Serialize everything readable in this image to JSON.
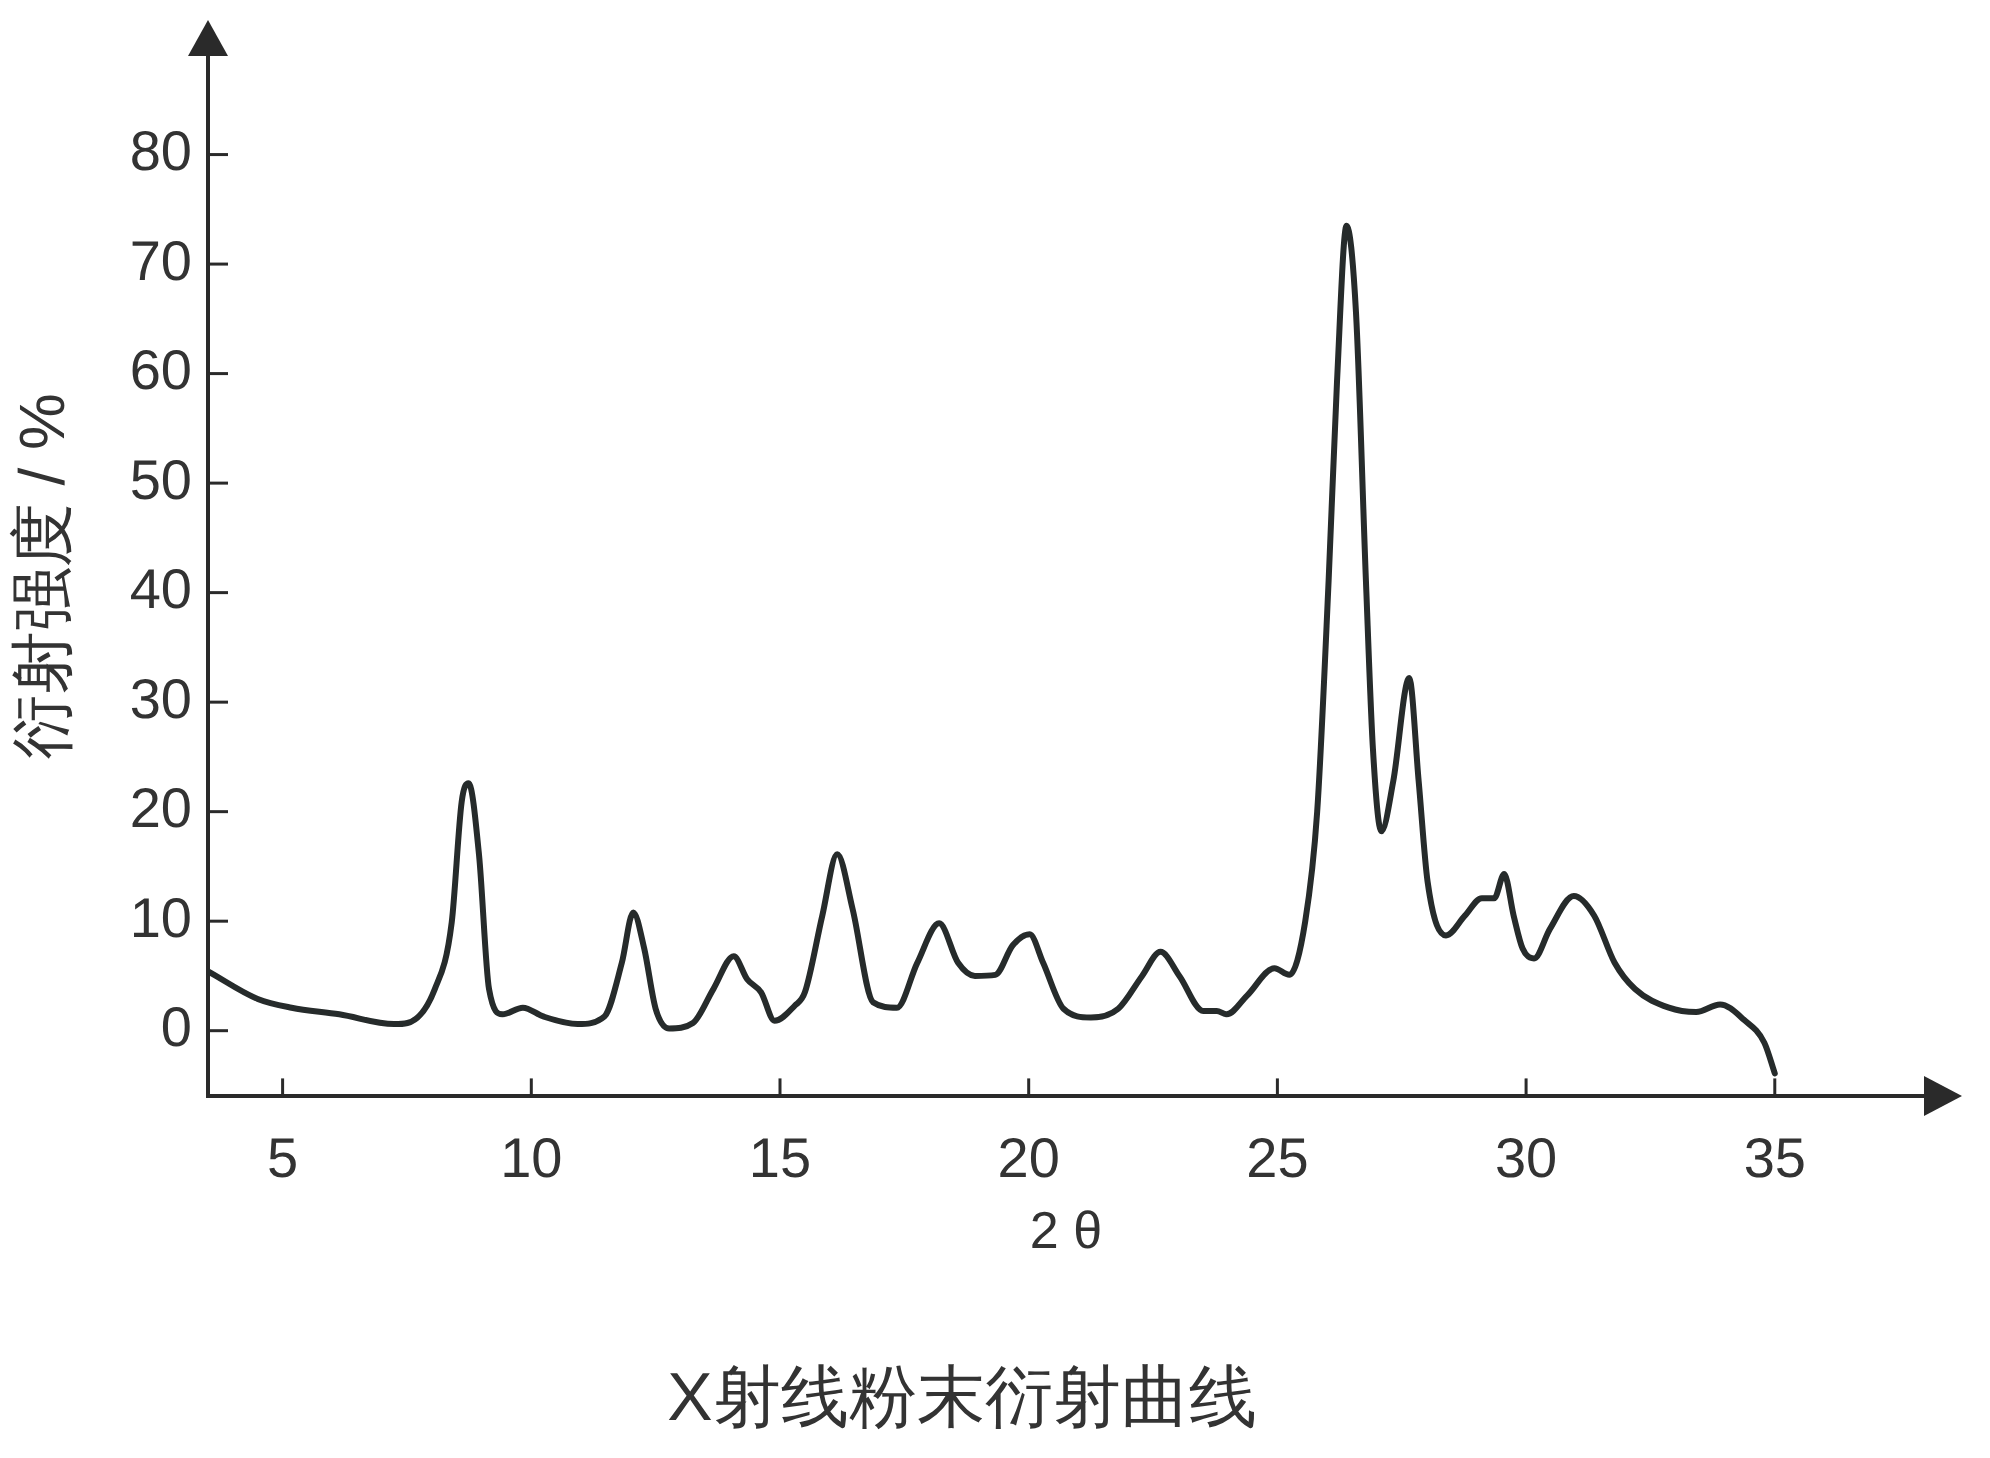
{
  "chart_data": {
    "type": "line",
    "title": "X射线粉末衍射曲线",
    "xlabel": "2 θ",
    "ylabel": "衍射强度 / %",
    "x": [
      3.51,
      4.5,
      5.18,
      6.14,
      7.24,
      7.51,
      8.06,
      8.4,
      8.6,
      8.74,
      8.95,
      9.15,
      9.42,
      9.83,
      10.24,
      10.93,
      11.47,
      11.82,
      12.05,
      12.27,
      12.5,
      12.77,
      13.25,
      13.66,
      14.07,
      14.34,
      14.62,
      14.89,
      15.3,
      15.5,
      15.85,
      16.15,
      16.46,
      16.87,
      17.35,
      17.76,
      18.2,
      18.58,
      18.92,
      19.33,
      19.68,
      20.02,
      20.29,
      20.7,
      21.25,
      21.8,
      22.28,
      22.65,
      23.03,
      23.51,
      23.78,
      23.98,
      24.39,
      24.94,
      25.24,
      25.56,
      25.8,
      26.03,
      26.2,
      26.39,
      26.58,
      26.78,
      26.92,
      27.09,
      27.33,
      27.65,
      27.84,
      28.02,
      28.39,
      28.77,
      29.11,
      29.36,
      29.56,
      29.75,
      29.93,
      30.16,
      30.48,
      30.96,
      31.37,
      31.78,
      32.19,
      32.87,
      33.42,
      33.9,
      34.38,
      34.79,
      35.0
    ],
    "series": [
      {
        "color": "#262b2b",
        "values": [
          5.4,
          2.9,
          2.1,
          1.5,
          0.6,
          0.7,
          3.8,
          9.9,
          20.9,
          22.6,
          16.0,
          3.8,
          1.5,
          2.1,
          1.3,
          0.6,
          1.3,
          6.2,
          10.8,
          7.5,
          2.0,
          0.2,
          0.7,
          3.8,
          6.8,
          4.7,
          3.5,
          0.9,
          2.3,
          3.5,
          10.5,
          16.1,
          11.1,
          2.6,
          2.1,
          6.2,
          9.8,
          6.2,
          5.0,
          5.1,
          7.8,
          8.8,
          6.2,
          2.0,
          1.2,
          2.0,
          5.0,
          7.2,
          5.0,
          1.8,
          1.8,
          1.5,
          3.2,
          5.7,
          5.1,
          10.0,
          20.0,
          41.1,
          59.4,
          73.5,
          65.6,
          41.1,
          25.8,
          18.2,
          22.8,
          32.2,
          22.8,
          13.6,
          8.7,
          10.5,
          12.1,
          12.1,
          14.3,
          10.5,
          7.5,
          6.6,
          9.3,
          12.3,
          10.5,
          6.2,
          3.8,
          2.1,
          1.7,
          2.4,
          1.0,
          -1.1,
          -3.9
        ]
      }
    ],
    "xlim": [
      3.5,
      38
    ],
    "ylim": [
      -6,
      89
    ],
    "xticks": [
      5,
      10,
      15,
      20,
      25,
      30,
      35
    ],
    "yticks": [
      0,
      10,
      20,
      30,
      40,
      50,
      60,
      70,
      80
    ]
  }
}
